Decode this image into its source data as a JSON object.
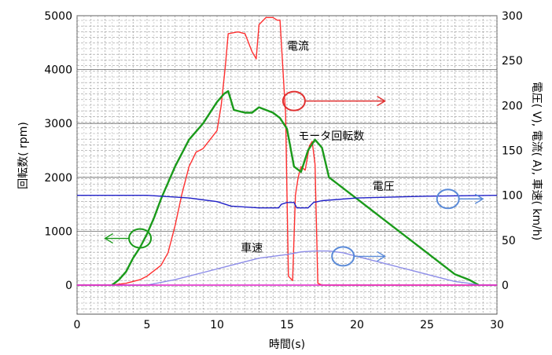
{
  "chart_data": {
    "type": "line",
    "xlabel": "時間(s)",
    "ylabel_left": "回転数( rpm)",
    "ylabel_right": "電圧( V), 電流( A), 車速( km/h)",
    "xlim": [
      0,
      30
    ],
    "ylim_left": [
      0,
      5000
    ],
    "ylim_right": [
      0,
      300
    ],
    "x_ticks": [
      0,
      5,
      10,
      15,
      20,
      25,
      30
    ],
    "y_left_ticks": [
      0,
      1000,
      2000,
      3000,
      4000,
      5000
    ],
    "y_right_ticks": [
      0,
      50,
      100,
      150,
      200,
      250,
      300
    ],
    "grid": true,
    "series": [
      {
        "name": "電流",
        "color": "#ff3030",
        "axis": "right",
        "x": [
          0,
          2.5,
          3.5,
          4.5,
          5.0,
          5.5,
          6.0,
          6.5,
          7.0,
          7.5,
          8.0,
          8.5,
          9.0,
          9.5,
          10.0,
          10.3,
          10.6,
          10.8,
          11.5,
          12.0,
          12.5,
          12.8,
          13.0,
          13.5,
          14.0,
          14.3,
          14.5,
          14.9,
          15.1,
          15.4,
          15.6,
          15.8,
          16.0,
          16.3,
          16.6,
          16.8,
          17.0,
          17.2,
          17.5,
          30
        ],
        "y": [
          0,
          0,
          2,
          6,
          10,
          16,
          22,
          36,
          66,
          102,
          132,
          148,
          152,
          162,
          172,
          200,
          245,
          280,
          282,
          280,
          260,
          252,
          290,
          298,
          298,
          295,
          295,
          190,
          10,
          5,
          100,
          120,
          132,
          128,
          155,
          160,
          135,
          2,
          0,
          0
        ]
      },
      {
        "name": "モータ回転数",
        "color": "#1a9a1a",
        "axis": "left",
        "x": [
          2.5,
          3.0,
          3.5,
          4.0,
          4.5,
          5.0,
          5.5,
          6.0,
          7.0,
          8.0,
          9.0,
          10.0,
          10.5,
          10.8,
          11.2,
          12.0,
          12.5,
          13.0,
          14.0,
          14.5,
          15.0,
          15.5,
          16.0,
          16.5,
          17.0,
          17.5,
          18.0,
          20.0,
          22.0,
          24.0,
          26.0,
          27.0,
          28.0,
          28.7
        ],
        "y": [
          0,
          100,
          250,
          500,
          700,
          950,
          1250,
          1600,
          2200,
          2700,
          3000,
          3400,
          3550,
          3600,
          3250,
          3200,
          3200,
          3300,
          3200,
          3100,
          2900,
          2200,
          2100,
          2500,
          2700,
          2550,
          2000,
          1600,
          1200,
          800,
          400,
          200,
          100,
          0
        ]
      },
      {
        "name": "電圧",
        "color": "#2020c8",
        "axis": "right",
        "x": [
          0,
          5,
          8,
          10,
          11,
          13,
          14.4,
          14.6,
          15.0,
          15.5,
          15.7,
          16.5,
          16.9,
          17.2,
          17.5,
          20,
          25,
          30
        ],
        "y": [
          100,
          100,
          97,
          93,
          88,
          86,
          86,
          90,
          92,
          92,
          86,
          86,
          92,
          93,
          94,
          97,
          99,
          100
        ]
      },
      {
        "name": "車速",
        "color": "#8c8ce8",
        "axis": "right",
        "x": [
          0,
          5,
          7,
          9,
          11,
          13,
          15,
          16,
          17,
          18,
          19,
          20,
          22,
          24,
          26,
          27,
          28,
          28.7,
          30
        ],
        "y": [
          0,
          0,
          6,
          14,
          22,
          30,
          34,
          37,
          38,
          38,
          36,
          32,
          24,
          16,
          8,
          4,
          2,
          0,
          0
        ]
      },
      {
        "name": "",
        "color": "#e020c8",
        "axis": "right",
        "x": [
          0,
          30
        ],
        "y": [
          0,
          0
        ]
      }
    ],
    "annotations": [
      {
        "text": "電流",
        "x": 15.0,
        "y_right": 262
      },
      {
        "text": "モータ回転数",
        "x": 15.8,
        "y_right": 162
      },
      {
        "text": "電圧",
        "x": 21.1,
        "y_right": 106
      },
      {
        "text": "車速",
        "x": 11.7,
        "y_right": 37
      }
    ],
    "markers": [
      {
        "axis_side": "right",
        "color": "#e03030",
        "x": 15.5,
        "y_right": 205,
        "arrow_to_x": 22
      },
      {
        "axis_side": "left",
        "color": "#1a9a1a",
        "x": 4.5,
        "y_right": 52,
        "arrow_to_x": 2
      },
      {
        "axis_side": "right",
        "color": "#5a8ad8",
        "x": 26.5,
        "y_right": 96,
        "arrow_to_x": 29
      },
      {
        "axis_side": "right",
        "color": "#5a8ad8",
        "x": 19,
        "y_right": 32,
        "arrow_to_x": 22
      }
    ]
  }
}
